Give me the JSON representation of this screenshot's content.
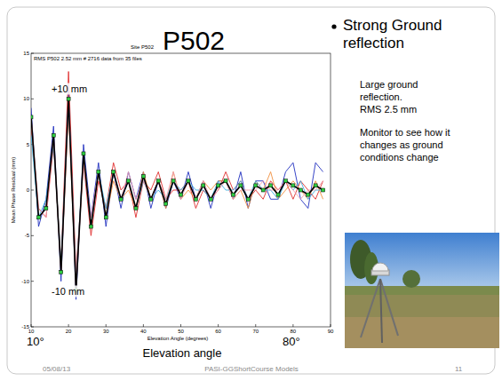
{
  "slide": {
    "title": "P502",
    "bullet": "Strong Ground reflection",
    "notes": [
      "Large ground reflection.",
      "RMS 2.5 mm",
      "Monitor to see how it changes as ground conditions change"
    ],
    "footer": {
      "date": "05/08/13",
      "center": "PASI-GGShortCourse Models",
      "page": "11"
    }
  },
  "chart_data": {
    "type": "line",
    "title": "Site P502",
    "subtitle": "RMS P502 2.52 mm # 2716 data from 35 files",
    "x_label": "Elevation Angle (degrees)",
    "y_label": "Mean Phase Residual (mm)",
    "annotations": [
      "+10 mm",
      "-10 mm",
      "10°",
      "80°",
      "Elevation angle"
    ],
    "x": [
      10,
      12,
      14,
      16,
      18,
      20,
      22,
      24,
      26,
      28,
      30,
      32,
      34,
      36,
      38,
      40,
      42,
      44,
      46,
      48,
      50,
      52,
      54,
      56,
      58,
      60,
      62,
      64,
      66,
      68,
      70,
      72,
      74,
      76,
      78,
      80,
      82,
      84,
      86,
      88
    ],
    "xlim": [
      10,
      90
    ],
    "xticks": [
      10,
      20,
      30,
      40,
      50,
      60,
      70,
      80,
      90
    ],
    "ylim": [
      -15,
      15
    ],
    "yticks": [
      -15,
      -10,
      -5,
      0,
      5,
      10,
      15
    ],
    "grid": false,
    "series": [
      {
        "color": "#2030c0",
        "values": [
          9,
          -4,
          -1,
          7,
          -10,
          11,
          -12,
          5,
          -3,
          3,
          -4,
          2,
          -2,
          2,
          -1,
          2,
          -2,
          1,
          -2,
          1,
          -1,
          2,
          -1,
          1,
          -2,
          1,
          1,
          -1,
          2,
          -2,
          1,
          1,
          -1,
          -1,
          2,
          3,
          -1,
          -2,
          3,
          2
        ]
      },
      {
        "color": "#e03030",
        "values": [
          7,
          -2,
          -3,
          5,
          -8,
          13,
          -9,
          3,
          -5,
          1,
          -2,
          3,
          0,
          1,
          -3,
          1,
          0,
          2,
          -1,
          0,
          0,
          1,
          -2,
          0,
          -1,
          0,
          2,
          0,
          1,
          -1,
          0,
          -1,
          1,
          0,
          1,
          -1,
          1,
          0,
          -1,
          1
        ]
      },
      {
        "color": "#f09040",
        "values": [
          8,
          -3,
          -2,
          6,
          -9,
          9,
          -11,
          4,
          -4,
          2,
          -3,
          1,
          -1,
          0,
          -2,
          2,
          -1,
          1,
          -2,
          2,
          -1,
          0,
          -1,
          1,
          0,
          1,
          1,
          -1,
          0,
          -2,
          1,
          0,
          2,
          -1,
          0,
          1,
          0,
          -1,
          1,
          -1
        ]
      },
      {
        "color": "#40b0e0",
        "values": [
          6,
          -3,
          -1,
          5,
          -8,
          10,
          -10,
          4,
          -4,
          2,
          -2,
          2,
          -1,
          1,
          -2,
          1,
          -1,
          0,
          -1,
          1,
          0,
          1,
          0,
          0,
          -1,
          1,
          0,
          0,
          1,
          -1,
          1,
          0,
          0,
          -1,
          1,
          0,
          1,
          -1,
          0,
          0
        ]
      },
      {
        "color": "#f0a0b0",
        "values": [
          8,
          -2,
          -3,
          6,
          -9,
          9,
          -10,
          3,
          -3,
          2,
          -3,
          2,
          -1,
          2,
          -1,
          1,
          -1,
          1,
          -1,
          2,
          -1,
          1,
          -1,
          1,
          -1,
          0,
          1,
          -1,
          0,
          0,
          0,
          1,
          0,
          0,
          1,
          0,
          -1,
          0,
          0,
          1
        ]
      },
      {
        "color": "#000000",
        "marker": "square",
        "values": [
          8,
          -3,
          -2,
          6,
          -9,
          10,
          -11,
          4,
          -4,
          2,
          -3,
          2,
          -1,
          1,
          -2,
          1.5,
          -1,
          1,
          -1.5,
          1,
          -0.5,
          1,
          -1,
          0.5,
          -1,
          0.5,
          1,
          -0.5,
          0.5,
          -1,
          0.5,
          0,
          0.5,
          -0.5,
          1,
          0.5,
          0,
          -0.5,
          0.5,
          0
        ]
      }
    ]
  }
}
